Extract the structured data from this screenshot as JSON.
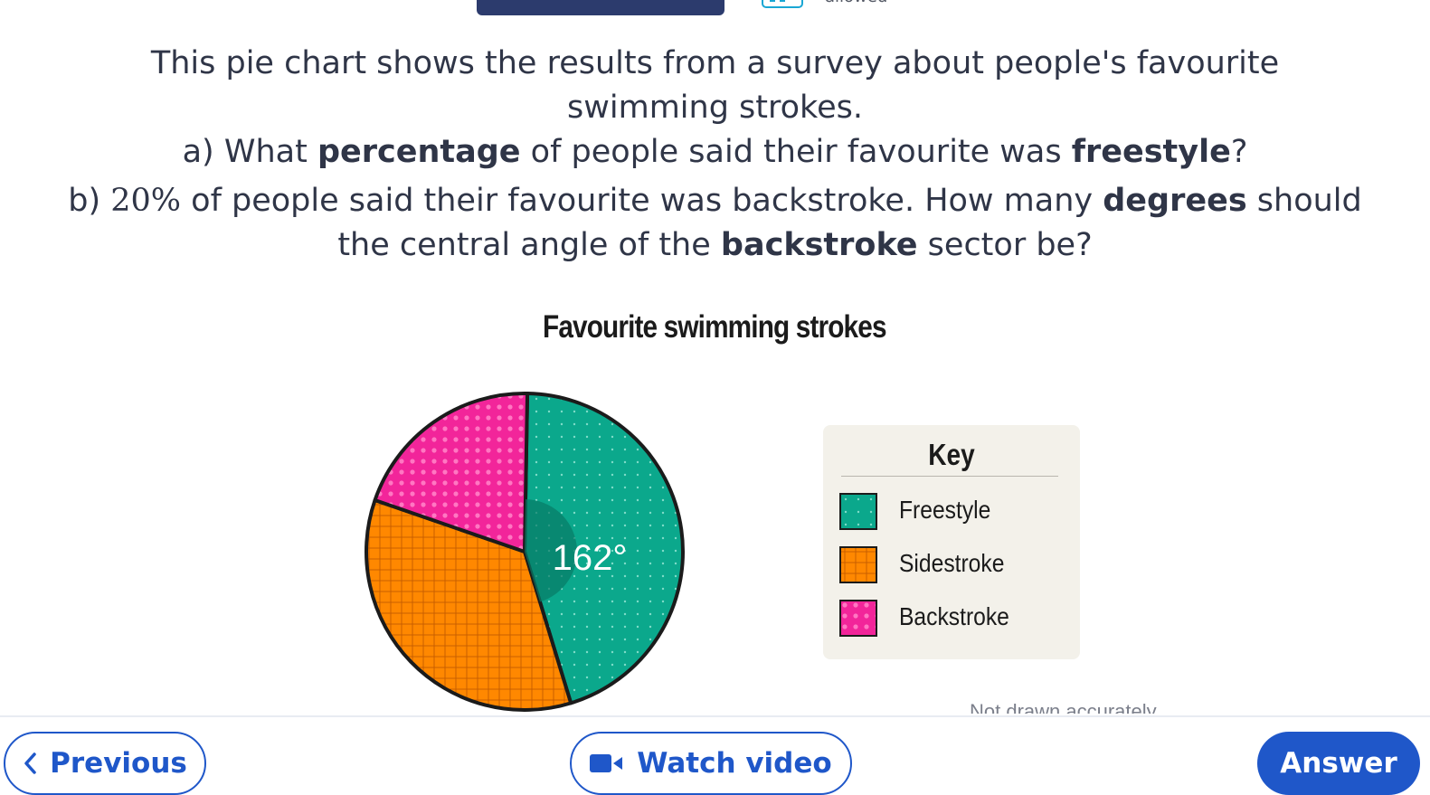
{
  "header": {
    "allowed_text": "allowed"
  },
  "question": {
    "line1": "This pie chart shows the results from a survey about people's favourite",
    "line2": "swimming strokes.",
    "a_prefix": "a) What ",
    "a_bold1": "percentage",
    "a_mid": " of people said their favourite was ",
    "a_bold2": "freestyle",
    "a_end": "?",
    "b_prefix": "b) ",
    "b_math": "20%",
    "b_mid": " of people said their favourite was backstroke. How many ",
    "b_bold1": "degrees",
    "b_end": " should",
    "b_line2_prefix": "the central angle of the ",
    "b_bold2": "backstroke",
    "b_line2_end": " sector be?"
  },
  "chart_data": {
    "type": "pie",
    "title": "Favourite swimming strokes",
    "categories": [
      "Freestyle",
      "Sidestroke",
      "Backstroke"
    ],
    "angles_degrees": [
      162,
      126,
      72
    ],
    "annotation": "162°",
    "legend_title": "Key",
    "legend_placement": "right",
    "colors": {
      "Freestyle": "#0ba88c",
      "Sidestroke": "#ff8800",
      "Backstroke": "#f2259a"
    },
    "note": "Not drawn accurately"
  },
  "buttons": {
    "previous": "Previous",
    "watch_video": "Watch video",
    "answer": "Answer"
  },
  "colors": {
    "accent": "#1f57c9",
    "header": "#2c3b6d"
  }
}
